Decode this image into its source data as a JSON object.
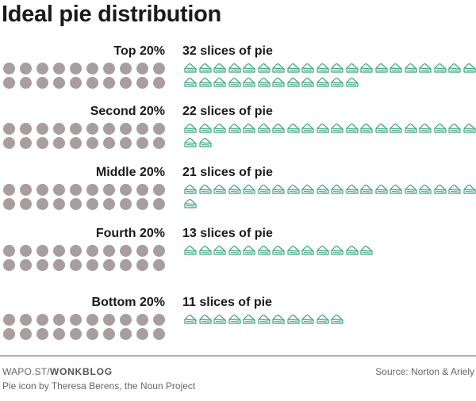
{
  "title": "Ideal pie distribution",
  "chart_data": {
    "type": "pictogram",
    "title": "Ideal pie distribution",
    "unit_label": "slices of pie",
    "people_icon_count_per_group": 20,
    "categories": [
      "Top 20%",
      "Second 20%",
      "Middle 20%",
      "Fourth 20%",
      "Bottom 20%"
    ],
    "values": [
      32,
      22,
      21,
      13,
      11
    ],
    "groups": [
      {
        "label": "Top 20%",
        "slices": 32,
        "slices_label": "32 slices of pie"
      },
      {
        "label": "Second 20%",
        "slices": 22,
        "slices_label": "22 slices of pie"
      },
      {
        "label": "Middle 20%",
        "slices": 21,
        "slices_label": "21 slices of pie"
      },
      {
        "label": "Fourth 20%",
        "slices": 13,
        "slices_label": "13 slices of pie"
      },
      {
        "label": "Bottom 20%",
        "slices": 11,
        "slices_label": "11 slices of pie"
      }
    ],
    "icons_per_row": 20,
    "dots_per_row": 10
  },
  "colors": {
    "dot": "#a89ea0",
    "pie_stroke": "#3aa57a",
    "text": "#1a1a1a",
    "footer_text": "#666666"
  },
  "footer": {
    "site_prefix": "WAPO.ST/",
    "site_bold": "WONKBLOG",
    "credit": "Pie icon by Theresa Berens, the Noun Project",
    "source": "Source: Norton & Ariely"
  }
}
